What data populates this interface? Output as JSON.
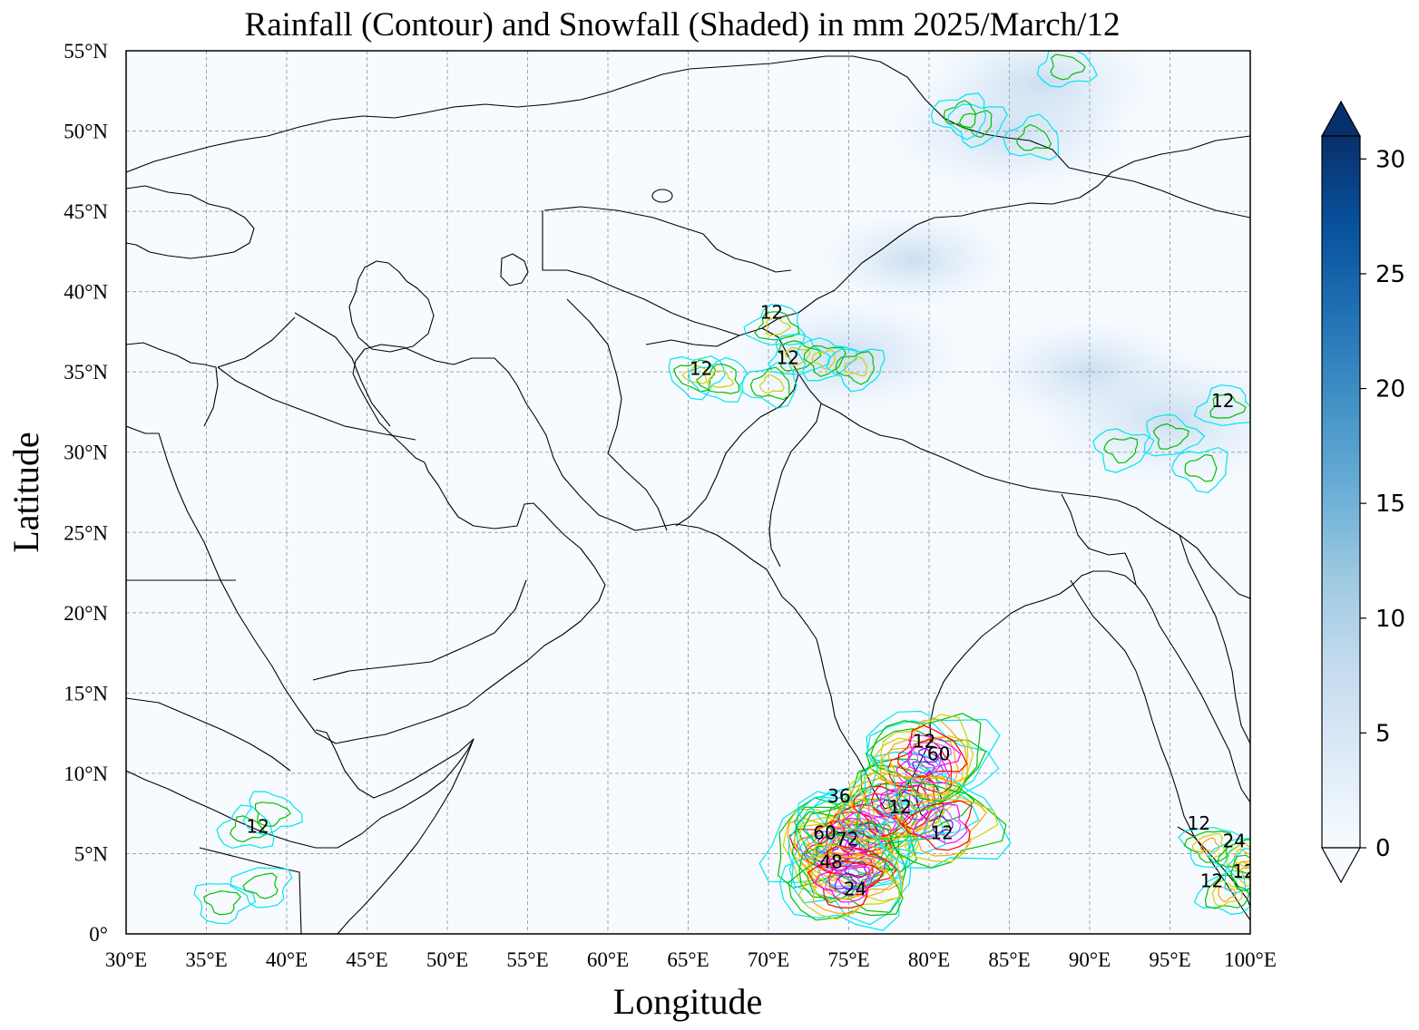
{
  "map": {
    "title": "Rainfall (Contour) and Snowfall (Shaded) in mm  2025/March/12",
    "xlabel": "Longitude",
    "ylabel": "Latitude",
    "lon_range": [
      30,
      100
    ],
    "lat_range": [
      0,
      55
    ],
    "x_ticks": [
      "30°E",
      "35°E",
      "40°E",
      "45°E",
      "50°E",
      "55°E",
      "60°E",
      "65°E",
      "70°E",
      "75°E",
      "80°E",
      "85°E",
      "90°E",
      "95°E",
      "100°E"
    ],
    "y_ticks": [
      "0°",
      "5°N",
      "10°N",
      "15°N",
      "20°N",
      "25°N",
      "30°N",
      "35°N",
      "40°N",
      "45°N",
      "50°N",
      "55°N"
    ],
    "grid": true,
    "colorbar": {
      "ticks": [
        "0",
        "5",
        "10",
        "15",
        "20",
        "25",
        "30"
      ],
      "min": 0,
      "max": 31,
      "cmap": "Blues",
      "extend": "both",
      "position": "right"
    },
    "contour_labels": [
      {
        "text": "12",
        "lon": 65.8,
        "lat": 34.8
      },
      {
        "text": "12",
        "lon": 70.2,
        "lat": 38.3
      },
      {
        "text": "12",
        "lon": 71.2,
        "lat": 35.5
      },
      {
        "text": "12",
        "lon": 98.3,
        "lat": 32.8
      },
      {
        "text": "12",
        "lon": 38.2,
        "lat": 6.3
      },
      {
        "text": "12",
        "lon": 79.7,
        "lat": 11.6
      },
      {
        "text": "60",
        "lon": 80.6,
        "lat": 10.8
      },
      {
        "text": "36",
        "lon": 74.4,
        "lat": 8.2
      },
      {
        "text": "12",
        "lon": 78.2,
        "lat": 7.5
      },
      {
        "text": "60",
        "lon": 73.5,
        "lat": 5.9
      },
      {
        "text": "72",
        "lon": 74.9,
        "lat": 5.5
      },
      {
        "text": "12",
        "lon": 80.8,
        "lat": 5.9
      },
      {
        "text": "48",
        "lon": 73.9,
        "lat": 4.1
      },
      {
        "text": "24",
        "lon": 75.4,
        "lat": 2.4
      },
      {
        "text": "12",
        "lon": 96.8,
        "lat": 6.5
      },
      {
        "text": "24",
        "lon": 99.0,
        "lat": 5.4
      },
      {
        "text": "12",
        "lon": 99.6,
        "lat": 3.5
      },
      {
        "text": "12",
        "lon": 97.6,
        "lat": 2.9
      }
    ],
    "contour_colors": [
      "#00e5ee",
      "#00c000",
      "#d0d000",
      "#ffa500",
      "#ff0000",
      "#ff00ff",
      "#c060ff",
      "#8000ff"
    ],
    "rain_systems": [
      {
        "name": "south-india-sri-lanka",
        "centers": [
          [
            73.6,
            5.5
          ],
          [
            74.6,
            5.0
          ],
          [
            75.3,
            6.0
          ],
          [
            76.2,
            6.5
          ],
          [
            77.4,
            7.8
          ],
          [
            78.6,
            8.3
          ],
          [
            79.6,
            10.3
          ],
          [
            80.1,
            11.2
          ],
          [
            75.5,
            4.0
          ],
          [
            74.8,
            3.2
          ],
          [
            80.8,
            6.8
          ]
        ],
        "peak_mm": 90
      },
      {
        "name": "afghanistan-pamir",
        "centers": [
          [
            65.5,
            34.8
          ],
          [
            67.0,
            34.5
          ],
          [
            70.5,
            37.8
          ],
          [
            71.8,
            36.0
          ],
          [
            73.5,
            35.8
          ],
          [
            75.5,
            35.3
          ],
          [
            70.2,
            34.2
          ]
        ],
        "peak_mm": 18
      },
      {
        "name": "tibet-east",
        "centers": [
          [
            98.5,
            32.8
          ],
          [
            95.0,
            31.0
          ],
          [
            92.0,
            30.2
          ],
          [
            97.0,
            29.0
          ]
        ],
        "peak_mm": 16
      },
      {
        "name": "kazakh-altai",
        "centers": [
          [
            83.0,
            50.5
          ],
          [
            82.0,
            51.0
          ],
          [
            86.5,
            49.5
          ],
          [
            88.5,
            54.0
          ]
        ],
        "peak_mm": 14
      },
      {
        "name": "horn-africa",
        "centers": [
          [
            37.5,
            6.5
          ],
          [
            39.0,
            7.5
          ],
          [
            36.0,
            2.0
          ],
          [
            38.5,
            3.0
          ]
        ],
        "peak_mm": 16
      },
      {
        "name": "malay-sumatra",
        "centers": [
          [
            97.5,
            5.5
          ],
          [
            99.5,
            4.8
          ],
          [
            98.5,
            2.5
          ],
          [
            100.0,
            3.8
          ]
        ],
        "peak_mm": 30
      }
    ],
    "snow_regions": [
      {
        "lon": 85.0,
        "lat": 50.0,
        "mm": 3.5
      },
      {
        "lon": 79.0,
        "lat": 42.0,
        "mm": 2.0
      },
      {
        "lon": 90.0,
        "lat": 35.0,
        "mm": 2.5
      },
      {
        "lon": 95.0,
        "lat": 32.0,
        "mm": 4.0
      },
      {
        "lon": 87.0,
        "lat": 53.0,
        "mm": 3.0
      },
      {
        "lon": 75.0,
        "lat": 36.0,
        "mm": 3.0
      }
    ]
  }
}
